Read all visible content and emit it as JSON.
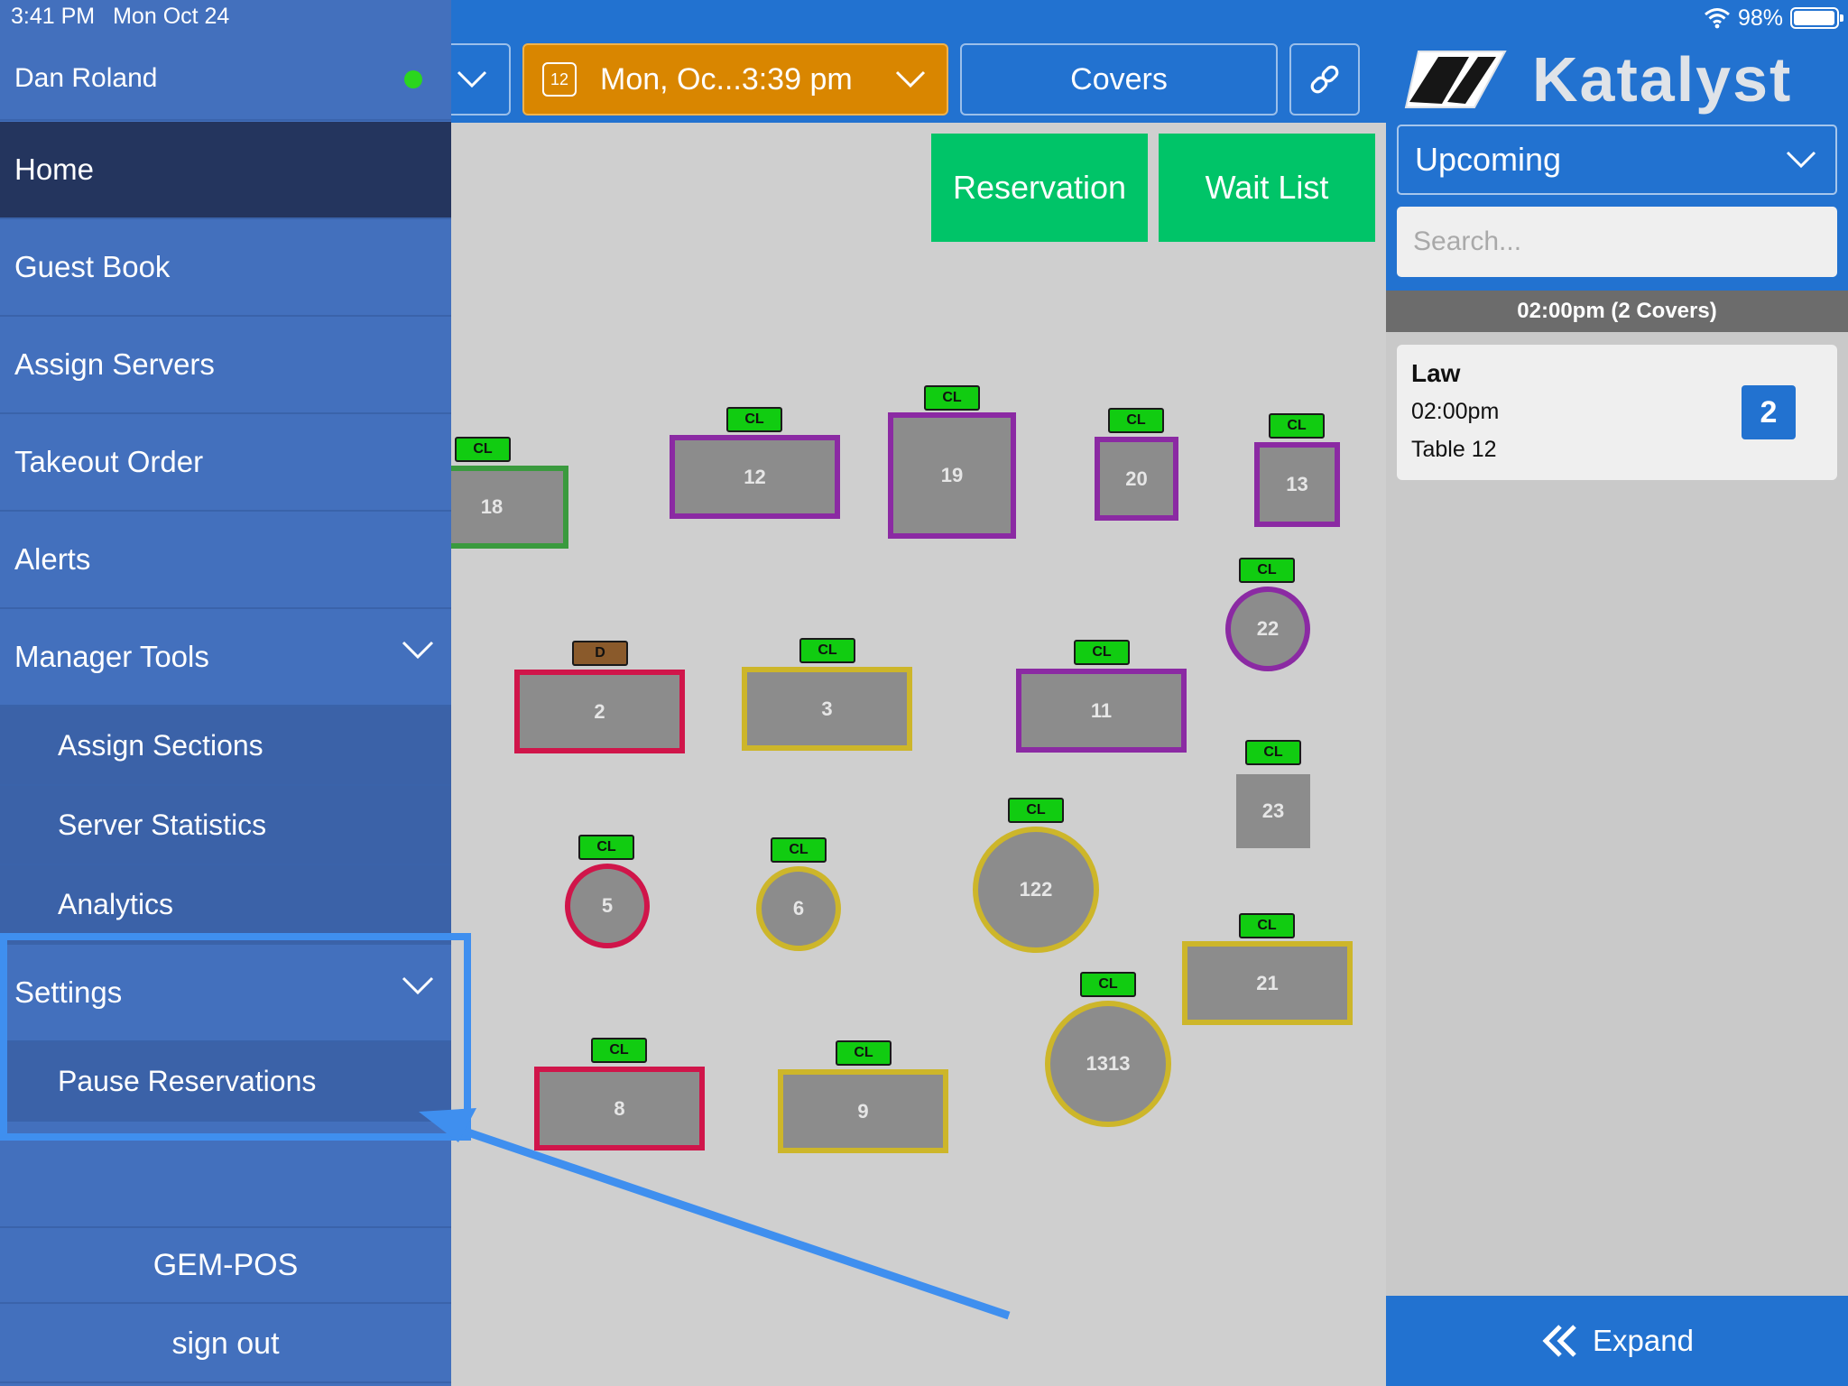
{
  "status_bar": {
    "time": "3:41 PM",
    "date": "Mon Oct 24",
    "battery": "98%",
    "battery_level": 0.98
  },
  "menu": {
    "user": "Dan Roland",
    "online_color": "#2bd61e",
    "items": [
      {
        "label": "Home"
      },
      {
        "label": "Guest Book"
      },
      {
        "label": "Assign Servers"
      },
      {
        "label": "Takeout Order"
      },
      {
        "label": "Alerts"
      },
      {
        "label": "Manager Tools"
      }
    ],
    "manager_tools_sub": [
      {
        "label": "Assign Sections"
      },
      {
        "label": "Server Statistics"
      },
      {
        "label": "Analytics"
      }
    ],
    "settings": {
      "label": "Settings"
    },
    "settings_sub": [
      {
        "label": "Pause Reservations"
      }
    ],
    "gem_pos": "GEM-POS",
    "sign_out": "sign out"
  },
  "toolbar": {
    "date_icon_day": "12",
    "date_label": "Mon, Oc...3:39 pm",
    "covers_label": "Covers",
    "link_icon": "link-icon"
  },
  "floor": {
    "reservation_label": "Reservation",
    "waitlist_label": "Wait List",
    "tables": [
      {
        "num": "18",
        "tag": "CL"
      },
      {
        "num": "12",
        "tag": "CL"
      },
      {
        "num": "19",
        "tag": "CL"
      },
      {
        "num": "20",
        "tag": "CL"
      },
      {
        "num": "13",
        "tag": "CL"
      },
      {
        "num": "22",
        "tag": "CL"
      },
      {
        "num": "2",
        "tag": "D"
      },
      {
        "num": "3",
        "tag": "CL"
      },
      {
        "num": "11",
        "tag": "CL"
      },
      {
        "num": "23",
        "tag": "CL"
      },
      {
        "num": "5",
        "tag": "CL"
      },
      {
        "num": "6",
        "tag": "CL"
      },
      {
        "num": "122",
        "tag": "CL"
      },
      {
        "num": "21",
        "tag": "CL"
      },
      {
        "num": "1313",
        "tag": "CL"
      },
      {
        "num": "8",
        "tag": "CL"
      },
      {
        "num": "9",
        "tag": "CL"
      }
    ],
    "colors": {
      "green": "#3a9a3e",
      "purple": "#8b2aa3",
      "red": "#d0154a",
      "yellow": "#cdb62a",
      "tag_green": "#11cc11",
      "tag_brown": "#8a5a2b"
    }
  },
  "right_panel": {
    "brand": "Katalyst",
    "filter_label": "Upcoming",
    "search_placeholder": "Search...",
    "time_group": "02:00pm (2 Covers)",
    "reservations": [
      {
        "name": "Law",
        "time": "02:00pm",
        "table": "Table 12",
        "covers": "2"
      }
    ],
    "expand_label": "Expand"
  },
  "annotation": {
    "color": "#3f8fef"
  }
}
